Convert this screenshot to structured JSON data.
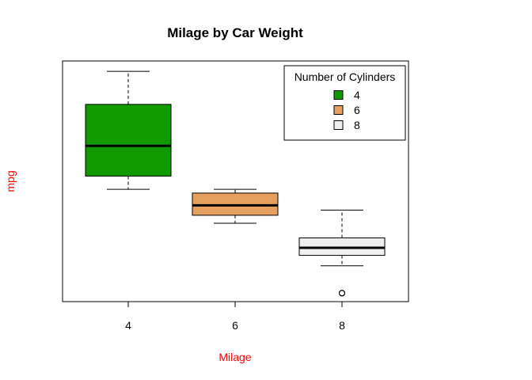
{
  "chart_data": {
    "type": "boxplot",
    "title": "Milage by Car Weight",
    "xlabel": "Milage",
    "ylabel": "mpg",
    "label_color": "#ff0000",
    "categories": [
      "4",
      "6",
      "8"
    ],
    "boxes": [
      {
        "category": "4",
        "min": 21.4,
        "q1": 22.8,
        "median": 26.0,
        "q3": 30.4,
        "max": 33.9,
        "outliers": [],
        "fill": "#119900"
      },
      {
        "category": "6",
        "min": 17.8,
        "q1": 18.65,
        "median": 19.7,
        "q3": 21.0,
        "max": 21.4,
        "outliers": [],
        "fill": "#e69f5f"
      },
      {
        "category": "8",
        "min": 13.3,
        "q1": 14.4,
        "median": 15.2,
        "q3": 16.25,
        "max": 19.2,
        "outliers": [
          10.4
        ],
        "fill": "#efefef"
      }
    ],
    "ylim": [
      9.5,
      35.0
    ],
    "y_ticks_shown": false,
    "legend": {
      "title": "Number of Cylinders",
      "position": "top-right",
      "entries": [
        {
          "label": "4",
          "color": "#119900"
        },
        {
          "label": "6",
          "color": "#e69f5f"
        },
        {
          "label": "8",
          "color": "#efefef"
        }
      ]
    }
  }
}
